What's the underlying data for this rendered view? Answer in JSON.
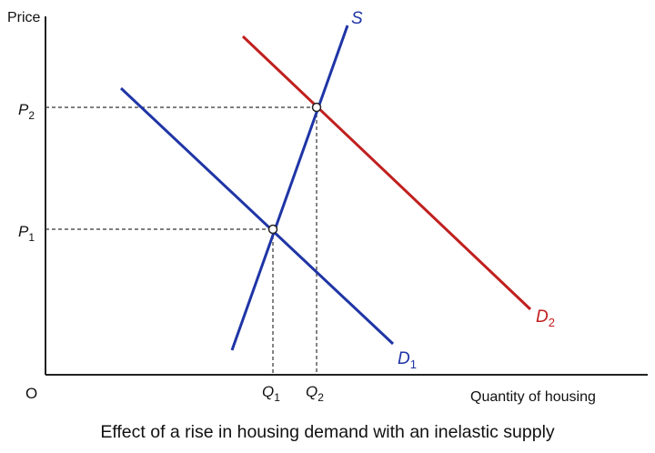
{
  "axes": {
    "y_label": "Price",
    "x_label": "Quantity of housing",
    "origin": "O"
  },
  "price_levels": [
    {
      "letter": "P",
      "sub": "2"
    },
    {
      "letter": "P",
      "sub": "1"
    }
  ],
  "quantity_levels": [
    {
      "letter": "Q",
      "sub": "1"
    },
    {
      "letter": "Q",
      "sub": "2"
    }
  ],
  "curves": {
    "supply": {
      "letter": "S"
    },
    "demand_1": {
      "letter": "D",
      "sub": "1"
    },
    "demand_2": {
      "letter": "D",
      "sub": "2"
    }
  },
  "caption": "Effect of a rise in housing demand with an inelastic supply"
}
